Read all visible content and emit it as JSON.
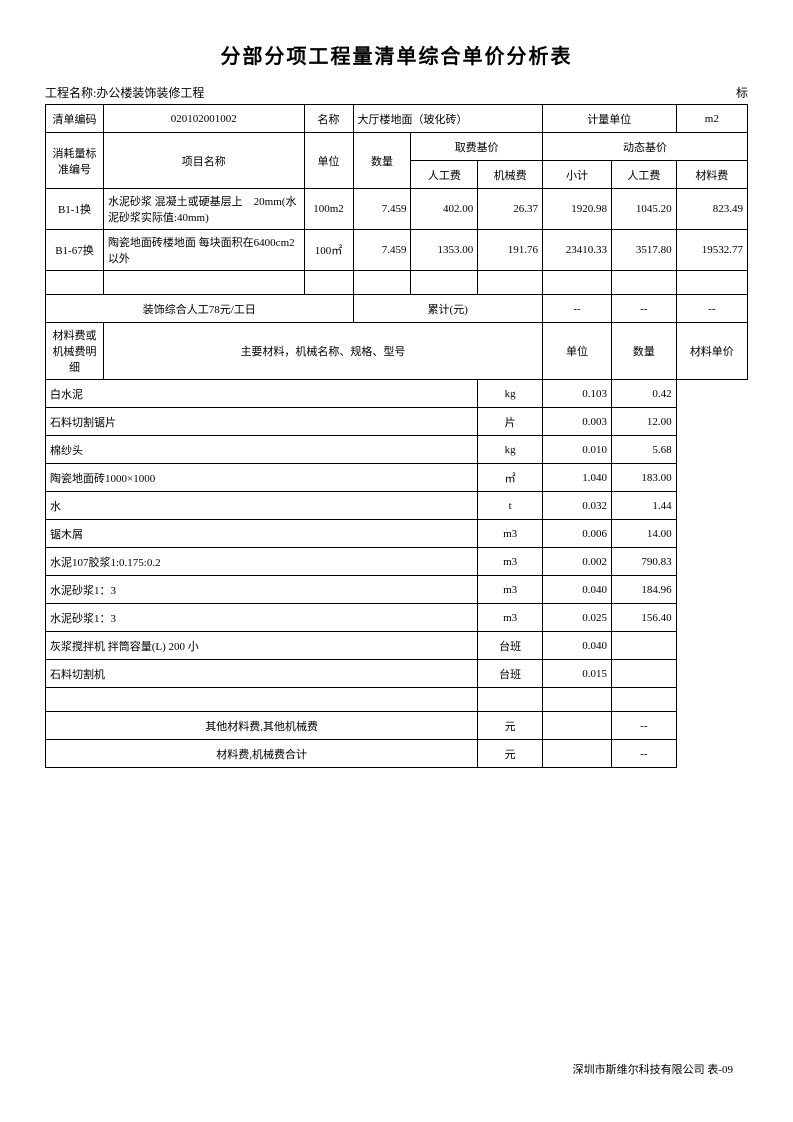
{
  "title": "分部分项工程量清单综合单价分析表",
  "projectLabel": "工程名称:",
  "projectName": "办公楼装饰装修工程",
  "tagRight": "标",
  "headers": {
    "billCode": "清单编码",
    "billCodeVal": "020102001002",
    "name": "名称",
    "nameVal": "大厅楼地面（玻化砖）",
    "unitLabel": "计量单位",
    "unitVal": "m2",
    "consumeStdCode": "消耗量标准编号",
    "itemName": "项目名称",
    "unit": "单位",
    "qty": "数量",
    "feeBase": "取费基价",
    "dynBase": "动态基价",
    "labor": "人工费",
    "machine": "机械费",
    "subtotal": "小计",
    "material": "材料费"
  },
  "rows": [
    {
      "code": "B1-1换",
      "name": "水泥砂浆 混凝土或硬基层上　20mm(水泥砂浆实际值:40mm)",
      "unit": "100m2",
      "qty": "7.459",
      "labor": "402.00",
      "machine": "26.37",
      "subtotal": "1920.98",
      "labor2": "1045.20",
      "material": "823.49"
    },
    {
      "code": "B1-67换",
      "name": "陶瓷地面砖楼地面 每块面积在6400cm2以外",
      "unit": "100㎡",
      "qty": "7.459",
      "labor": "1353.00",
      "machine": "191.76",
      "subtotal": "23410.33",
      "labor2": "3517.80",
      "material": "19532.77"
    }
  ],
  "summaryRow": {
    "laborRate": "装饰综合人工78元/工日",
    "totalLabel": "累计(元)",
    "dash": "--"
  },
  "materialSection": {
    "sideLabel": "材料费或机械费明细",
    "header": "主要材料，机械名称、规格、型号",
    "unitCol": "单位",
    "qtyCol": "数量",
    "priceCol": "材料单价"
  },
  "materials": [
    {
      "name": "白水泥",
      "unit": "kg",
      "qty": "0.103",
      "price": "0.42"
    },
    {
      "name": "石料切割锯片",
      "unit": "片",
      "qty": "0.003",
      "price": "12.00"
    },
    {
      "name": "棉纱头",
      "unit": "kg",
      "qty": "0.010",
      "price": "5.68"
    },
    {
      "name": "陶瓷地面砖1000×1000",
      "unit": "㎡",
      "qty": "1.040",
      "price": "183.00"
    },
    {
      "name": "水",
      "unit": "t",
      "qty": "0.032",
      "price": "1.44"
    },
    {
      "name": "锯木屑",
      "unit": "m3",
      "qty": "0.006",
      "price": "14.00"
    },
    {
      "name": "水泥107胶浆1:0.175:0.2",
      "unit": "m3",
      "qty": "0.002",
      "price": "790.83"
    },
    {
      "name": "水泥砂浆1：3",
      "unit": "m3",
      "qty": "0.040",
      "price": "184.96"
    },
    {
      "name": "水泥砂浆1：3",
      "unit": "m3",
      "qty": "0.025",
      "price": "156.40"
    },
    {
      "name": "灰浆搅拌机 拌筒容量(L) 200 小",
      "unit": "台班",
      "qty": "0.040",
      "price": ""
    },
    {
      "name": "石料切割机",
      "unit": "台班",
      "qty": "0.015",
      "price": ""
    }
  ],
  "bottomRows": {
    "otherFees": "其他材料费,其他机械费",
    "totalFees": "材料费,机械费合计",
    "yuan": "元",
    "dash": "--"
  },
  "footer": "深圳市斯维尔科技有限公司 表-09",
  "colWidths": {
    "c1": 52,
    "c2": 180,
    "c3": 40,
    "c4": 52,
    "c5": 60,
    "c6": 58,
    "c7": 62,
    "c8": 58,
    "c9": 62
  }
}
